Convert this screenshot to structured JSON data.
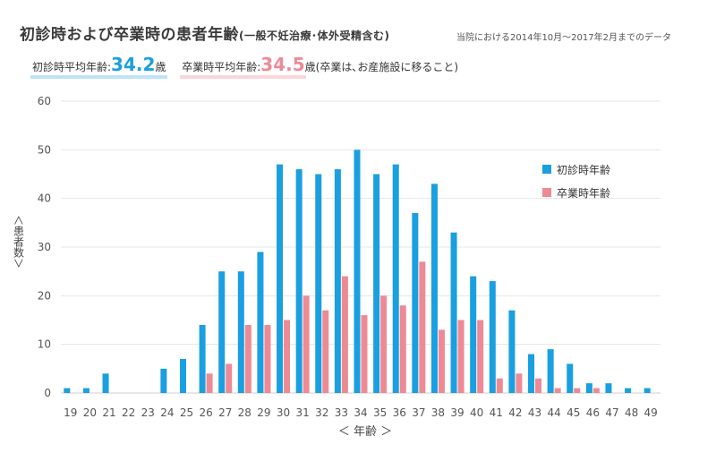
{
  "header": {
    "title": "初診時および卒業時の患者年齢",
    "title_sub": "(一般不妊治療･体外受精含む)",
    "note": "当院における2014年10月～2017年2月までのデータ"
  },
  "averages": {
    "first_label": "初診時平均年齢:",
    "first_value": "34.2",
    "first_unit": "歳",
    "grad_label": "卒業時平均年齢:",
    "grad_value": "34.5",
    "grad_unit": "歳",
    "grad_note": "(卒業は､お産施設に移ること)"
  },
  "axis_labels": {
    "y": "＜患者数＞",
    "x": "＜ 年齢 ＞"
  },
  "colors": {
    "first": "#1a9fe0",
    "grad": "#ee8a94",
    "grid": "#e6e6e6",
    "tick_text": "#555555"
  },
  "chart_data": {
    "type": "bar",
    "title": "初診時および卒業時の患者年齢(一般不妊治療･体外受精含む)",
    "xlabel": "＜ 年齢 ＞",
    "ylabel": "＜患者数＞",
    "ylim": [
      0,
      60
    ],
    "yticks": [
      0,
      10,
      20,
      30,
      40,
      50,
      60
    ],
    "grid": true,
    "legend_position": "top-right",
    "categories": [
      "19",
      "20",
      "21",
      "22",
      "23",
      "24",
      "25",
      "26",
      "27",
      "28",
      "29",
      "30",
      "31",
      "32",
      "33",
      "34",
      "35",
      "36",
      "37",
      "38",
      "39",
      "40",
      "41",
      "42",
      "43",
      "44",
      "45",
      "46",
      "47",
      "48",
      "49"
    ],
    "series": [
      {
        "name": "初診時年齢",
        "color": "#1a9fe0",
        "values": [
          1,
          1,
          4,
          0,
          0,
          5,
          7,
          14,
          25,
          25,
          29,
          47,
          46,
          45,
          46,
          50,
          45,
          47,
          37,
          43,
          33,
          24,
          23,
          17,
          8,
          9,
          6,
          2,
          2,
          1,
          1
        ]
      },
      {
        "name": "卒業時年齢",
        "color": "#ee8a94",
        "values": [
          0,
          0,
          0,
          0,
          0,
          0,
          0,
          4,
          6,
          14,
          14,
          15,
          20,
          17,
          24,
          16,
          20,
          18,
          27,
          13,
          15,
          15,
          3,
          4,
          3,
          1,
          1,
          1,
          0,
          0,
          0
        ]
      }
    ]
  }
}
